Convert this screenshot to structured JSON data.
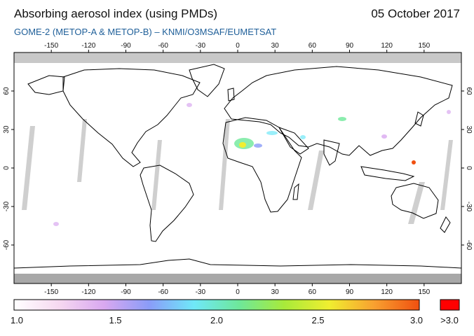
{
  "header": {
    "title": "Absorbing aerosol index (using PMDs)",
    "date": "05 October 2017",
    "subtitle": "GOME-2 (METOP-A & METOP-B)  –  KNMI/O3MSAF/EUMETSAT"
  },
  "map": {
    "lon_ticks": [
      "-150",
      "-120",
      "-90",
      "-60",
      "-30",
      "0",
      "30",
      "60",
      "90",
      "120",
      "150"
    ],
    "lat_ticks": [
      "60",
      "30",
      "0",
      "-30",
      "-60"
    ],
    "no_data_color": "#c8c8c8",
    "coastline_color": "#000000"
  },
  "colorbar": {
    "labels": [
      "1.0",
      "1.5",
      "2.0",
      "2.5",
      "3.0"
    ],
    "over_label": ">3.0",
    "over_color": "#ff0000",
    "gradient_stops": [
      "#ffffff",
      "#f6d8f0",
      "#d9a8f0",
      "#8a9cf8",
      "#6fe8f8",
      "#6ee89a",
      "#a8ea3a",
      "#f0ee30",
      "#f8a030",
      "#f05010"
    ]
  }
}
